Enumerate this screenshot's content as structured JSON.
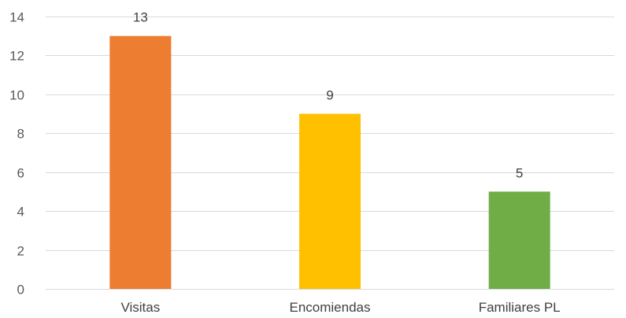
{
  "chart_data": {
    "type": "bar",
    "categories": [
      "Visitas",
      "Encomiendas",
      "Familiares PL"
    ],
    "values": [
      13,
      9,
      5
    ],
    "data_labels": [
      "13",
      "9",
      "5"
    ],
    "colors": [
      "#ed7d31",
      "#ffc000",
      "#70ad47"
    ],
    "title": "",
    "xlabel": "",
    "ylabel": "",
    "ylim": [
      0,
      14
    ],
    "yticks": [
      0,
      2,
      4,
      6,
      8,
      10,
      12,
      14
    ],
    "ytick_labels": [
      "0",
      "2",
      "4",
      "6",
      "8",
      "10",
      "12",
      "14"
    ],
    "grid": true,
    "legend": "none"
  }
}
